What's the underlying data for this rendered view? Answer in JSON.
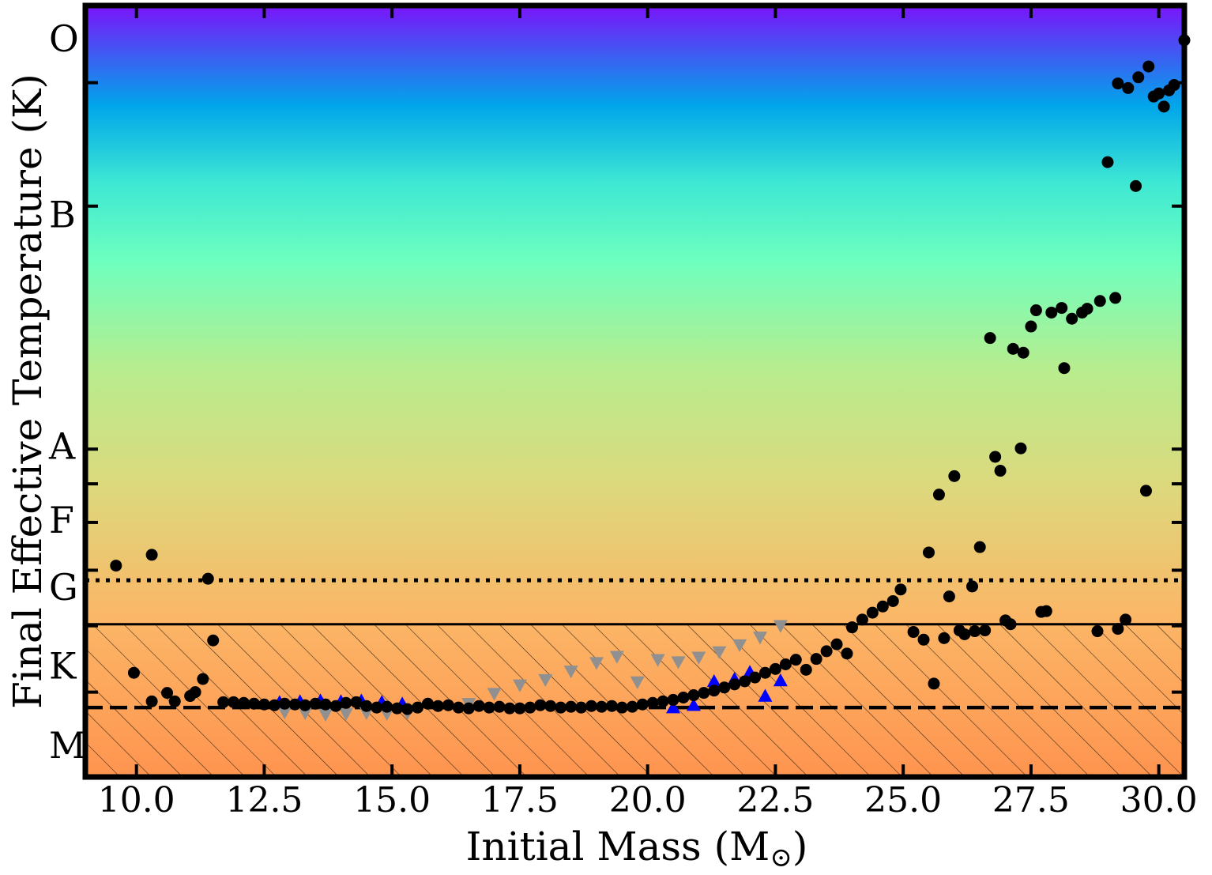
{
  "chart_data": {
    "type": "scatter",
    "title": "",
    "xlabel": "Initial Mass (M",
    "xlabel_sub": "⊙",
    "xlabel_close": ")",
    "ylabel": "Final Effective Temperature (K)",
    "xlim": [
      9.0,
      30.5
    ],
    "ylim": [
      0,
      100
    ],
    "y_scale_note": "class-scaled",
    "x_ticks": [
      10.0,
      12.5,
      15.0,
      17.5,
      20.0,
      22.5,
      25.0,
      27.5,
      30.0
    ],
    "x_tick_labels": [
      "10.0",
      "12.5",
      "15.0",
      "17.5",
      "20.0",
      "22.5",
      "25.0",
      "27.5",
      "30.0"
    ],
    "spectral_classes": [
      {
        "label": "O",
        "y": 95.7
      },
      {
        "label": "B",
        "y": 72.9
      },
      {
        "label": "A",
        "y": 42.9
      },
      {
        "label": "F",
        "y": 33.3
      },
      {
        "label": "G",
        "y": 24.6
      },
      {
        "label": "K",
        "y": 14.4
      },
      {
        "label": "M",
        "y": 4.1
      }
    ],
    "boundary_ticks": [
      90.0,
      74.0,
      42.5,
      38.0,
      33.0,
      26.8,
      19.6,
      11.0
    ],
    "reference_lines": [
      {
        "style": "dotted",
        "y": 25.5
      },
      {
        "style": "solid",
        "y": 19.8
      },
      {
        "style": "dashed",
        "y": 9.0
      }
    ],
    "hatched_region": {
      "from": 0,
      "to": 19.8
    },
    "colors": {
      "gradient_top": "#7a14fa",
      "gradient_blue": "#00a6ea",
      "gradient_teal": "#3ee8d3",
      "gradient_green": "#6dffbf",
      "gradient_lime": "#b7ed8e",
      "gradient_yellow": "#dcd97d",
      "gradient_orange": "#fcb566",
      "gradient_bottom": "#fe944f",
      "black_series": "#000000",
      "blue_series": "#0000ff",
      "gray_series": "#909090"
    },
    "series": [
      {
        "marker": "circle",
        "color": "#000000",
        "points": [
          [
            9.6,
            27.4
          ],
          [
            10.3,
            28.8
          ],
          [
            11.4,
            25.7
          ],
          [
            9.95,
            13.5
          ],
          [
            10.3,
            9.8
          ],
          [
            10.6,
            10.9
          ],
          [
            10.75,
            9.8
          ],
          [
            11.05,
            10.5
          ],
          [
            11.15,
            11.0
          ],
          [
            11.3,
            12.7
          ],
          [
            11.5,
            17.7
          ],
          [
            11.7,
            9.7
          ],
          [
            11.9,
            9.7
          ],
          [
            12.1,
            9.6
          ],
          [
            12.3,
            9.5
          ],
          [
            12.5,
            9.4
          ],
          [
            12.7,
            9.3
          ],
          [
            12.9,
            9.5
          ],
          [
            13.1,
            9.4
          ],
          [
            13.3,
            9.3
          ],
          [
            13.5,
            9.5
          ],
          [
            13.7,
            9.4
          ],
          [
            13.9,
            9.2
          ],
          [
            14.1,
            9.6
          ],
          [
            14.3,
            9.7
          ],
          [
            14.5,
            9.2
          ],
          [
            14.7,
            9.0
          ],
          [
            14.9,
            9.1
          ],
          [
            15.1,
            8.9
          ],
          [
            15.3,
            8.8
          ],
          [
            15.5,
            9.0
          ],
          [
            15.7,
            9.5
          ],
          [
            15.9,
            9.2
          ],
          [
            16.1,
            9.3
          ],
          [
            16.3,
            9.0
          ],
          [
            16.5,
            8.9
          ],
          [
            16.7,
            9.2
          ],
          [
            16.9,
            9.0
          ],
          [
            17.1,
            9.1
          ],
          [
            17.3,
            8.9
          ],
          [
            17.5,
            8.9
          ],
          [
            17.7,
            9.0
          ],
          [
            17.9,
            9.3
          ],
          [
            18.1,
            9.2
          ],
          [
            18.3,
            9.0
          ],
          [
            18.5,
            9.1
          ],
          [
            18.7,
            9.0
          ],
          [
            18.9,
            9.2
          ],
          [
            19.1,
            9.1
          ],
          [
            19.3,
            9.2
          ],
          [
            19.5,
            9.0
          ],
          [
            19.7,
            9.1
          ],
          [
            19.9,
            9.4
          ],
          [
            20.1,
            9.6
          ],
          [
            20.3,
            9.8
          ],
          [
            20.5,
            10.0
          ],
          [
            20.7,
            10.3
          ],
          [
            20.9,
            10.6
          ],
          [
            21.1,
            10.9
          ],
          [
            21.3,
            11.2
          ],
          [
            21.5,
            11.6
          ],
          [
            21.7,
            12.0
          ],
          [
            21.9,
            12.4
          ],
          [
            22.1,
            12.9
          ],
          [
            22.3,
            13.5
          ],
          [
            22.5,
            14.0
          ],
          [
            22.7,
            14.6
          ],
          [
            22.9,
            15.2
          ],
          [
            23.1,
            13.9
          ],
          [
            23.3,
            15.3
          ],
          [
            23.5,
            16.3
          ],
          [
            23.7,
            17.2
          ],
          [
            23.9,
            16.0
          ],
          [
            24.0,
            19.4
          ],
          [
            24.2,
            20.4
          ],
          [
            24.4,
            21.3
          ],
          [
            24.6,
            22.1
          ],
          [
            24.8,
            22.8
          ],
          [
            24.95,
            24.3
          ],
          [
            25.2,
            18.8
          ],
          [
            25.4,
            17.8
          ],
          [
            25.5,
            29.1
          ],
          [
            25.6,
            12.1
          ],
          [
            25.8,
            18.0
          ],
          [
            25.7,
            36.6
          ],
          [
            25.9,
            23.4
          ],
          [
            26.0,
            39.0
          ],
          [
            26.1,
            19.0
          ],
          [
            26.2,
            18.5
          ],
          [
            26.35,
            24.7
          ],
          [
            26.4,
            18.9
          ],
          [
            26.5,
            29.8
          ],
          [
            26.6,
            19.0
          ],
          [
            26.7,
            56.9
          ],
          [
            26.8,
            41.5
          ],
          [
            26.9,
            39.7
          ],
          [
            27.0,
            20.3
          ],
          [
            27.1,
            19.8
          ],
          [
            27.15,
            55.5
          ],
          [
            27.3,
            42.6
          ],
          [
            27.35,
            55.0
          ],
          [
            27.5,
            58.4
          ],
          [
            27.6,
            60.5
          ],
          [
            27.7,
            21.4
          ],
          [
            27.8,
            21.5
          ],
          [
            27.9,
            60.2
          ],
          [
            28.1,
            60.8
          ],
          [
            28.15,
            53.0
          ],
          [
            28.3,
            59.4
          ],
          [
            28.5,
            60.2
          ],
          [
            28.6,
            60.7
          ],
          [
            28.8,
            18.9
          ],
          [
            28.85,
            61.7
          ],
          [
            29.0,
            79.7
          ],
          [
            29.15,
            62.1
          ],
          [
            29.2,
            19.2
          ],
          [
            29.35,
            20.4
          ],
          [
            29.2,
            89.9
          ],
          [
            29.4,
            89.3
          ],
          [
            29.55,
            76.6
          ],
          [
            29.6,
            90.7
          ],
          [
            29.75,
            37.1
          ],
          [
            29.8,
            92.1
          ],
          [
            29.9,
            88.2
          ],
          [
            30.0,
            88.6
          ],
          [
            30.1,
            86.9
          ],
          [
            30.2,
            89.0
          ],
          [
            30.3,
            89.7
          ],
          [
            30.5,
            95.5
          ]
        ]
      },
      {
        "marker": "triangle-up",
        "color": "#0000ff",
        "points": [
          [
            12.8,
            9.7
          ],
          [
            13.2,
            9.8
          ],
          [
            13.6,
            9.9
          ],
          [
            14.0,
            9.8
          ],
          [
            14.4,
            9.9
          ],
          [
            14.8,
            9.7
          ],
          [
            15.2,
            9.5
          ],
          [
            20.5,
            9.0
          ],
          [
            20.9,
            9.3
          ],
          [
            21.3,
            12.4
          ],
          [
            21.7,
            12.7
          ],
          [
            22.0,
            13.6
          ],
          [
            22.3,
            10.5
          ],
          [
            22.6,
            12.5
          ]
        ]
      },
      {
        "marker": "triangle-down",
        "color": "#909090",
        "points": [
          [
            12.9,
            8.4
          ],
          [
            13.3,
            8.3
          ],
          [
            13.7,
            8.1
          ],
          [
            14.1,
            8.2
          ],
          [
            14.5,
            8.3
          ],
          [
            14.9,
            8.2
          ],
          [
            15.3,
            8.3
          ],
          [
            16.5,
            9.5
          ],
          [
            17.0,
            10.8
          ],
          [
            17.5,
            11.9
          ],
          [
            18.0,
            12.6
          ],
          [
            18.5,
            13.7
          ],
          [
            19.0,
            14.8
          ],
          [
            19.4,
            15.6
          ],
          [
            19.8,
            12.3
          ],
          [
            20.2,
            15.2
          ],
          [
            20.6,
            14.9
          ],
          [
            21.0,
            15.5
          ],
          [
            21.4,
            16.2
          ],
          [
            21.8,
            17.1
          ],
          [
            22.2,
            18.1
          ],
          [
            22.6,
            19.6
          ]
        ]
      }
    ]
  }
}
